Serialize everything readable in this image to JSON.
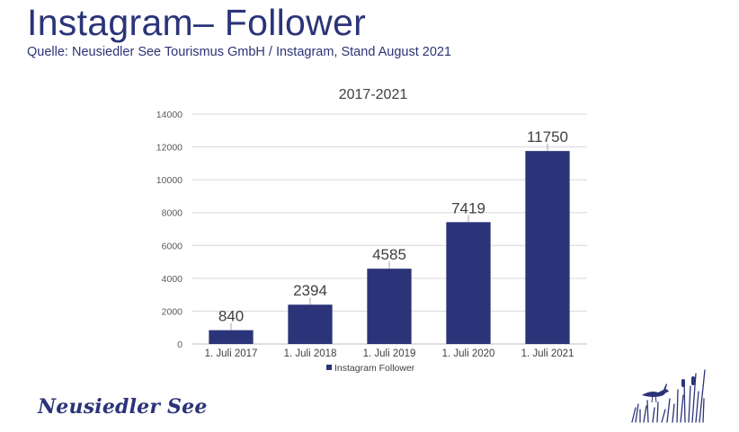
{
  "header": {
    "title": "Instagram– Follower",
    "subtitle": "Quelle: Neusiedler See Tourismus GmbH / Instagram, Stand August 2021"
  },
  "chart_data": {
    "type": "bar",
    "title": "2017-2021",
    "categories": [
      "1. Juli 2017",
      "1. Juli 2018",
      "1. Juli 2019",
      "1. Juli 2020",
      "1. Juli 2021"
    ],
    "series": [
      {
        "name": "Instagram Follower",
        "values": [
          840,
          2394,
          4585,
          7419,
          11750
        ]
      }
    ],
    "yticks": [
      "0",
      "2000",
      "4000",
      "6000",
      "8000",
      "10000",
      "12000",
      "14000"
    ],
    "ylim": [
      0,
      14000
    ],
    "grid": true,
    "legend": "bottom",
    "bar_color": "#2b3478"
  },
  "footer": {
    "logo_text": "Neusiedler See",
    "logo_icon": "reed-bird-icon"
  }
}
